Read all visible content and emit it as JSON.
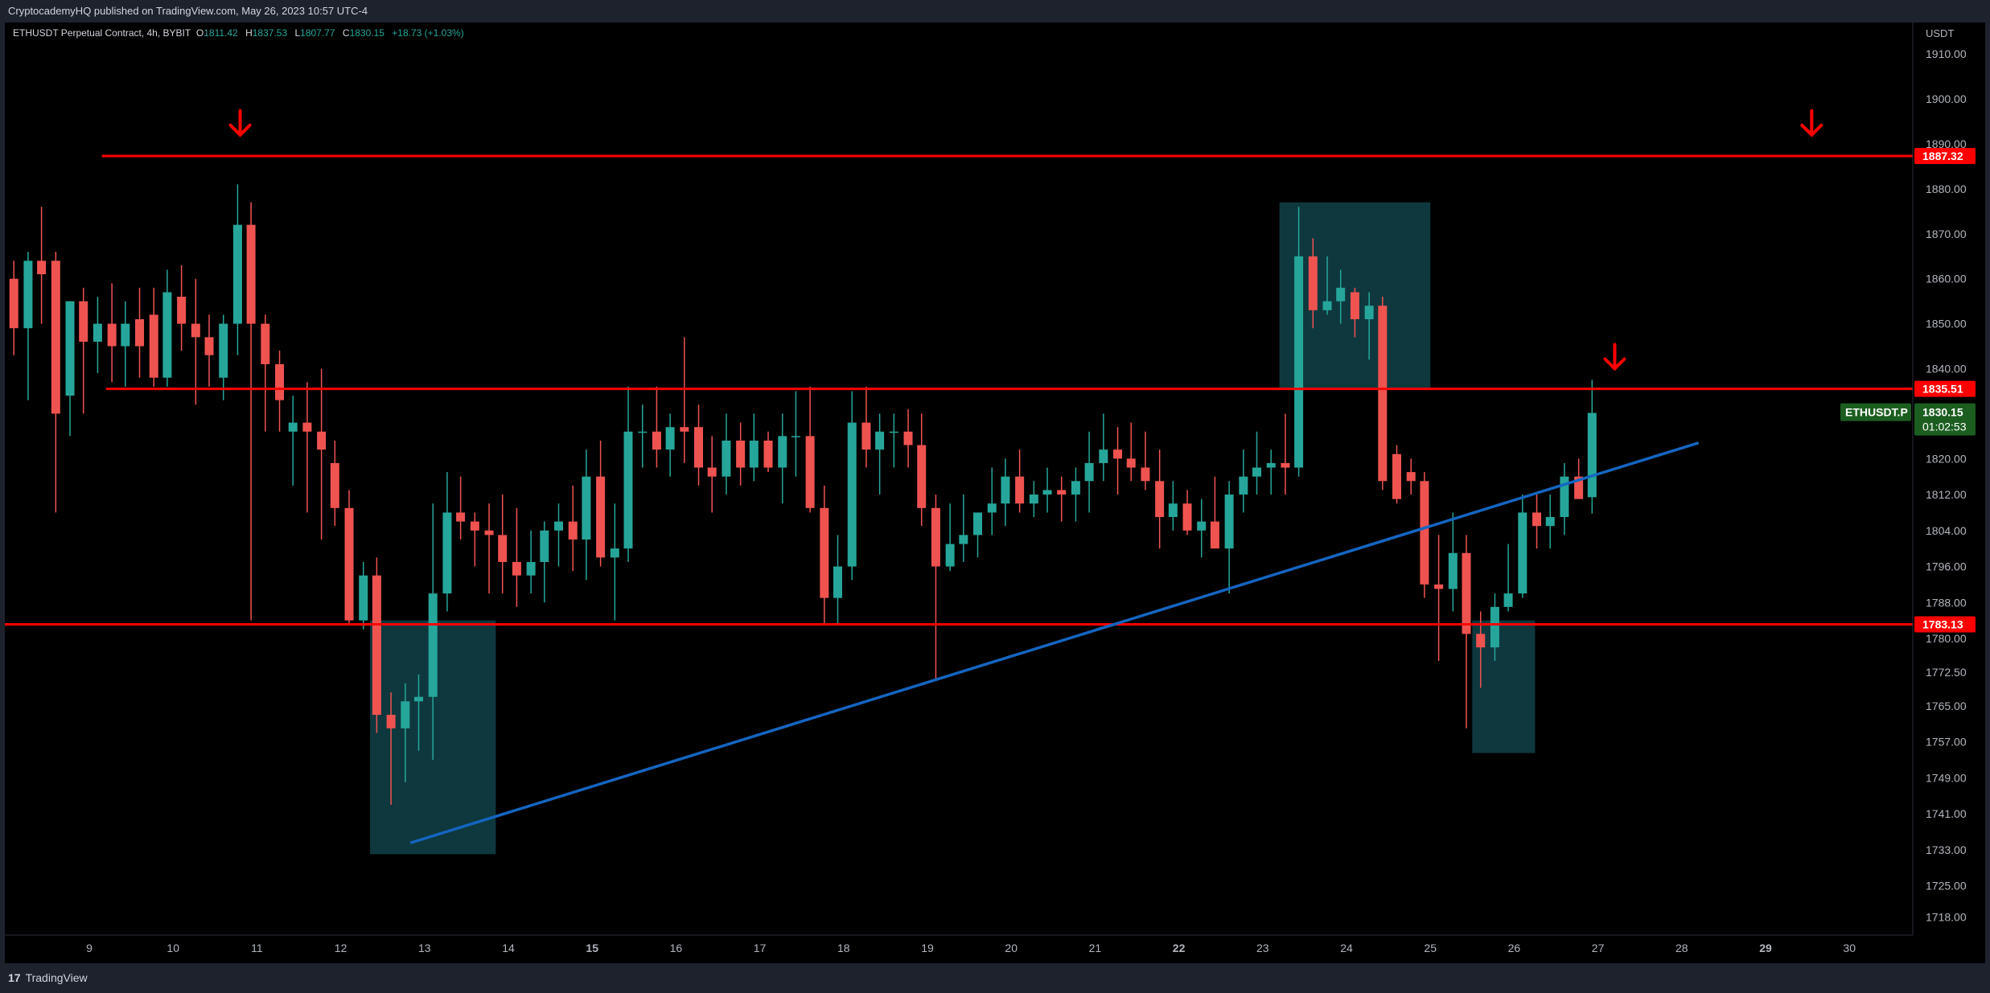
{
  "header": {
    "published_text": "CryptocademyHQ published on TradingView.com, May 26, 2023 10:57 UTC-4"
  },
  "legend": {
    "symbol_text": "ETHUSDT Perpetual Contract, 4h, BYBIT",
    "open_label": "O",
    "open_value": "1811.42",
    "high_label": "H",
    "high_value": "1837.53",
    "low_label": "L",
    "low_value": "1807.77",
    "close_label": "C",
    "close_value": "1830.15",
    "change_text": "+18.73 (+1.03%)"
  },
  "footer": {
    "logo_glyph": "17",
    "brand": "TradingView"
  },
  "colors": {
    "up": "#26a69a",
    "down": "#ef5350",
    "level_line": "#ff0000",
    "trendline": "#1565c0",
    "zone": "#0f3e45",
    "price_tag_green": "#1b5e20"
  },
  "chart_data": {
    "type": "candlestick",
    "currency_label": "USDT",
    "ylim": [
      1714,
      1917
    ],
    "y_ticks": [
      1910,
      1900,
      1890,
      1880,
      1870,
      1860,
      1850,
      1840,
      1830,
      1820,
      1812,
      1804,
      1796,
      1788,
      1780,
      1772.5,
      1765,
      1757,
      1749,
      1741,
      1733,
      1725,
      1718
    ],
    "x_ticks": [
      {
        "x": 9,
        "label": "9",
        "bold": false
      },
      {
        "x": 10,
        "label": "10",
        "bold": false
      },
      {
        "x": 11,
        "label": "11",
        "bold": false
      },
      {
        "x": 12,
        "label": "12",
        "bold": false
      },
      {
        "x": 13,
        "label": "13",
        "bold": false
      },
      {
        "x": 14,
        "label": "14",
        "bold": false
      },
      {
        "x": 15,
        "label": "15",
        "bold": true
      },
      {
        "x": 16,
        "label": "16",
        "bold": false
      },
      {
        "x": 17,
        "label": "17",
        "bold": false
      },
      {
        "x": 18,
        "label": "18",
        "bold": false
      },
      {
        "x": 19,
        "label": "19",
        "bold": false
      },
      {
        "x": 20,
        "label": "20",
        "bold": false
      },
      {
        "x": 21,
        "label": "21",
        "bold": false
      },
      {
        "x": 22,
        "label": "22",
        "bold": true
      },
      {
        "x": 23,
        "label": "23",
        "bold": false
      },
      {
        "x": 24,
        "label": "24",
        "bold": false
      },
      {
        "x": 25,
        "label": "25",
        "bold": false
      },
      {
        "x": 26,
        "label": "26",
        "bold": false
      },
      {
        "x": 27,
        "label": "27",
        "bold": false
      },
      {
        "x": 28,
        "label": "28",
        "bold": false
      },
      {
        "x": 29,
        "label": "29",
        "bold": true
      },
      {
        "x": 30,
        "label": "30",
        "bold": false
      }
    ],
    "candles": [
      [
        8.1,
        1860,
        1864,
        1843,
        1849
      ],
      [
        8.27,
        1849,
        1866,
        1833,
        1864
      ],
      [
        8.43,
        1864,
        1876,
        1850,
        1861
      ],
      [
        8.6,
        1864,
        1866,
        1808,
        1830
      ],
      [
        8.77,
        1834,
        1855,
        1825,
        1855
      ],
      [
        8.93,
        1855,
        1858,
        1830,
        1846
      ],
      [
        9.1,
        1846,
        1856,
        1839,
        1850
      ],
      [
        9.27,
        1850,
        1859,
        1837,
        1845
      ],
      [
        9.43,
        1845,
        1855,
        1836,
        1850
      ],
      [
        9.6,
        1851,
        1858,
        1838,
        1845
      ],
      [
        9.77,
        1852,
        1858,
        1836,
        1838
      ],
      [
        9.93,
        1838,
        1862,
        1836,
        1857
      ],
      [
        10.1,
        1856,
        1863,
        1844,
        1850
      ],
      [
        10.27,
        1850,
        1860,
        1832,
        1847
      ],
      [
        10.43,
        1847,
        1852,
        1836,
        1843
      ],
      [
        10.6,
        1838,
        1852,
        1833,
        1850
      ],
      [
        10.77,
        1850,
        1881,
        1843,
        1872
      ],
      [
        10.93,
        1872,
        1877,
        1784,
        1850
      ],
      [
        11.1,
        1850,
        1852,
        1826,
        1841
      ],
      [
        11.27,
        1841,
        1844,
        1826,
        1833
      ],
      [
        11.43,
        1826,
        1834,
        1814,
        1828
      ],
      [
        11.6,
        1828,
        1837,
        1808,
        1826
      ],
      [
        11.77,
        1826,
        1840,
        1802,
        1822
      ],
      [
        11.93,
        1819,
        1824,
        1805,
        1809
      ],
      [
        12.1,
        1809,
        1813,
        1783,
        1784
      ],
      [
        12.27,
        1784,
        1797,
        1782,
        1794
      ],
      [
        12.43,
        1794,
        1798,
        1759,
        1763
      ],
      [
        12.6,
        1763,
        1768,
        1743,
        1760
      ],
      [
        12.77,
        1760,
        1770,
        1748,
        1766
      ],
      [
        12.93,
        1766,
        1772,
        1755,
        1767
      ],
      [
        13.1,
        1767,
        1810,
        1753,
        1790
      ],
      [
        13.27,
        1790,
        1817,
        1786,
        1808
      ],
      [
        13.43,
        1808,
        1816,
        1802,
        1806
      ],
      [
        13.6,
        1806,
        1808,
        1796,
        1804
      ],
      [
        13.77,
        1804,
        1810,
        1790,
        1803
      ],
      [
        13.93,
        1803,
        1812,
        1790,
        1797
      ],
      [
        14.1,
        1797,
        1809,
        1787,
        1794
      ],
      [
        14.27,
        1794,
        1804,
        1790,
        1797
      ],
      [
        14.43,
        1797,
        1806,
        1788,
        1804
      ],
      [
        14.6,
        1804,
        1810,
        1796,
        1806
      ],
      [
        14.77,
        1806,
        1814,
        1795,
        1802
      ],
      [
        14.93,
        1802,
        1822,
        1793,
        1816
      ],
      [
        15.1,
        1816,
        1824,
        1796,
        1798
      ],
      [
        15.27,
        1798,
        1810,
        1784,
        1800
      ],
      [
        15.43,
        1800,
        1836,
        1797,
        1826
      ],
      [
        15.6,
        1826,
        1832,
        1818,
        1826
      ],
      [
        15.77,
        1826,
        1836,
        1818,
        1822
      ],
      [
        15.93,
        1822,
        1830,
        1816,
        1827
      ],
      [
        16.1,
        1827,
        1847,
        1819,
        1826
      ],
      [
        16.27,
        1827,
        1832,
        1814,
        1818
      ],
      [
        16.43,
        1818,
        1825,
        1808,
        1816
      ],
      [
        16.6,
        1816,
        1830,
        1812,
        1824
      ],
      [
        16.77,
        1824,
        1828,
        1814,
        1818
      ],
      [
        16.93,
        1818,
        1830,
        1815,
        1824
      ],
      [
        17.1,
        1824,
        1826,
        1817,
        1818
      ],
      [
        17.27,
        1818,
        1830,
        1810,
        1825
      ],
      [
        17.43,
        1825,
        1835,
        1816,
        1825
      ],
      [
        17.6,
        1825,
        1836,
        1808,
        1809
      ],
      [
        17.77,
        1809,
        1814,
        1783,
        1789
      ],
      [
        17.93,
        1789,
        1803,
        1783,
        1796
      ],
      [
        18.1,
        1796,
        1835,
        1793,
        1828
      ],
      [
        18.27,
        1828,
        1836,
        1818,
        1822
      ],
      [
        18.43,
        1822,
        1830,
        1812,
        1826
      ],
      [
        18.6,
        1826,
        1830,
        1818,
        1826
      ],
      [
        18.77,
        1826,
        1831,
        1818,
        1823
      ],
      [
        18.93,
        1823,
        1830,
        1805,
        1809
      ],
      [
        19.1,
        1809,
        1812,
        1771,
        1796
      ],
      [
        19.27,
        1796,
        1810,
        1795,
        1801
      ],
      [
        19.43,
        1801,
        1812,
        1797,
        1803
      ],
      [
        19.6,
        1803,
        1808,
        1798,
        1808
      ],
      [
        19.77,
        1808,
        1818,
        1803,
        1810
      ],
      [
        19.93,
        1810,
        1820,
        1805,
        1816
      ],
      [
        20.1,
        1816,
        1822,
        1808,
        1810
      ],
      [
        20.27,
        1810,
        1815,
        1807,
        1812
      ],
      [
        20.43,
        1812,
        1818,
        1808,
        1813
      ],
      [
        20.6,
        1813,
        1816,
        1806,
        1812
      ],
      [
        20.77,
        1812,
        1818,
        1806,
        1815
      ],
      [
        20.93,
        1815,
        1826,
        1808,
        1819
      ],
      [
        21.1,
        1819,
        1830,
        1815,
        1822
      ],
      [
        21.27,
        1822,
        1827,
        1812,
        1820
      ],
      [
        21.43,
        1820,
        1828,
        1815,
        1818
      ],
      [
        21.6,
        1818,
        1826,
        1813,
        1815
      ],
      [
        21.77,
        1815,
        1822,
        1800,
        1807
      ],
      [
        21.93,
        1807,
        1815,
        1804,
        1810
      ],
      [
        22.1,
        1810,
        1813,
        1803,
        1804
      ],
      [
        22.27,
        1804,
        1811,
        1798,
        1806
      ],
      [
        22.43,
        1806,
        1816,
        1800,
        1800
      ],
      [
        22.6,
        1800,
        1815,
        1790,
        1812
      ],
      [
        22.77,
        1812,
        1822,
        1808,
        1816
      ],
      [
        22.93,
        1816,
        1826,
        1812,
        1818
      ],
      [
        23.1,
        1818,
        1822,
        1812,
        1819
      ],
      [
        23.27,
        1819,
        1830,
        1812,
        1818
      ],
      [
        23.43,
        1818,
        1876,
        1816,
        1865
      ],
      [
        23.6,
        1865,
        1869,
        1849,
        1853
      ],
      [
        23.77,
        1853,
        1865,
        1852,
        1855
      ],
      [
        23.93,
        1855,
        1862,
        1850,
        1858
      ],
      [
        24.1,
        1857,
        1858,
        1847,
        1851
      ],
      [
        24.27,
        1851,
        1857,
        1842,
        1854
      ],
      [
        24.43,
        1854,
        1856,
        1813,
        1815
      ],
      [
        24.6,
        1821,
        1823,
        1810,
        1811
      ],
      [
        24.77,
        1817,
        1820,
        1812,
        1815
      ],
      [
        24.93,
        1815,
        1817,
        1789,
        1792
      ],
      [
        25.1,
        1792,
        1803,
        1775,
        1791
      ],
      [
        25.27,
        1791,
        1808,
        1786,
        1799
      ],
      [
        25.43,
        1799,
        1803,
        1760,
        1781
      ],
      [
        25.6,
        1781,
        1786,
        1769,
        1778
      ],
      [
        25.77,
        1778,
        1790,
        1775,
        1787
      ],
      [
        25.93,
        1787,
        1801,
        1786,
        1790
      ],
      [
        26.1,
        1790,
        1812,
        1789,
        1808
      ],
      [
        26.27,
        1808,
        1812,
        1800,
        1805
      ],
      [
        26.43,
        1805,
        1812,
        1800,
        1807
      ],
      [
        26.6,
        1807,
        1819,
        1803,
        1816
      ],
      [
        26.77,
        1816,
        1820,
        1812,
        1811
      ],
      [
        26.93,
        1811.42,
        1837.53,
        1807.77,
        1830.15
      ]
    ],
    "horizontal_levels": [
      {
        "price": 1887.32,
        "label": "1887.32",
        "x_start": 9.15
      },
      {
        "price": 1835.51,
        "label": "1835.51",
        "x_start": 9.2
      },
      {
        "price": 1783.13,
        "label": "1783.13",
        "x_start": 7.9
      }
    ],
    "current_price": {
      "symbol": "ETHUSDT.P",
      "price": "1830.15",
      "countdown": "01:02:53"
    },
    "trendline": {
      "x1": 12.83,
      "y1": 1734.5,
      "x2": 28.2,
      "y2": 1823.5
    },
    "zones": [
      {
        "x1": 12.35,
        "x2": 13.85,
        "y1": 1732,
        "y2": 1784
      },
      {
        "x1": 23.2,
        "x2": 25.0,
        "y1": 1835.5,
        "y2": 1877
      },
      {
        "x1": 25.5,
        "x2": 26.25,
        "y1": 1754.5,
        "y2": 1784
      }
    ],
    "arrows": [
      {
        "x": 10.8,
        "price": 1892
      },
      {
        "x": 29.55,
        "price": 1892
      },
      {
        "x": 27.2,
        "price": 1840
      }
    ]
  }
}
